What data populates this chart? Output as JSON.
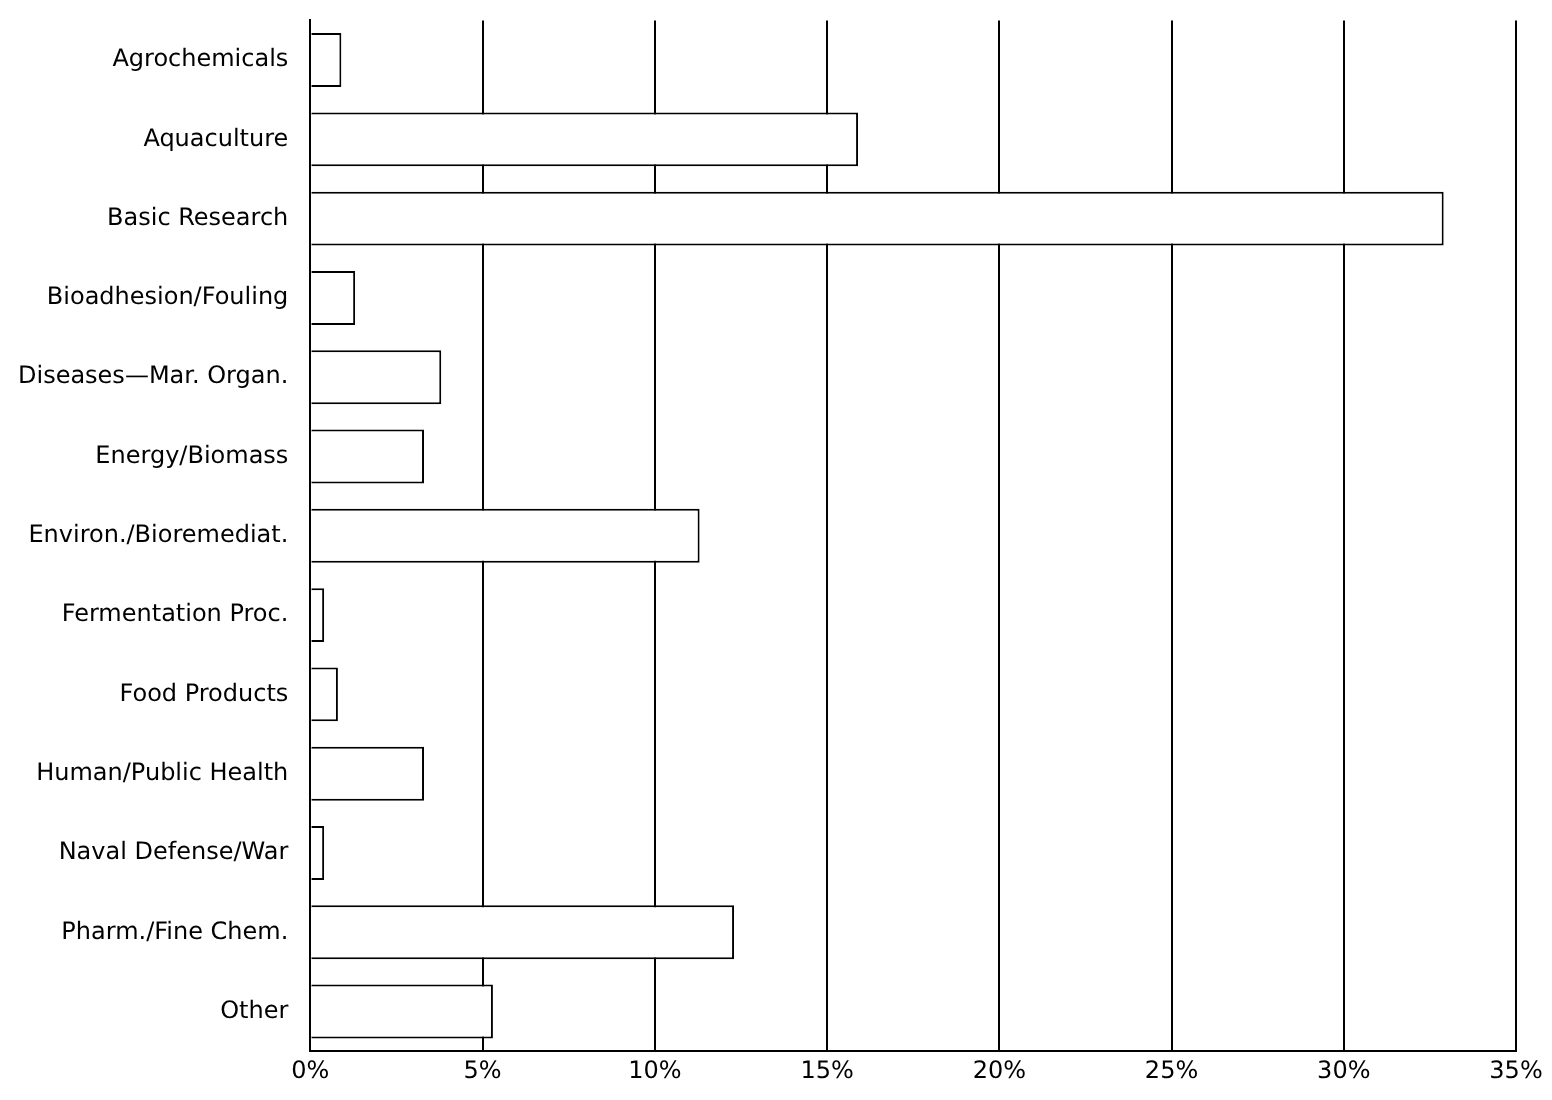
{
  "chart_data": {
    "type": "bar",
    "orientation": "horizontal",
    "categories": [
      "Agrochemicals",
      "Aquaculture",
      "Basic Research",
      "Bioadhesion/Fouling",
      "Diseases—Mar. Organ.",
      "Energy/Biomass",
      "Environ./Bioremediat.",
      "Fermentation Proc.",
      "Food Products",
      "Human/Public Health",
      "Naval Defense/War",
      "Pharm./Fine Chem.",
      "Other"
    ],
    "values": [
      0.9,
      15.9,
      32.9,
      1.3,
      3.8,
      3.3,
      11.3,
      0.4,
      0.8,
      3.3,
      0.4,
      12.3,
      5.3
    ],
    "color": "#ffffff",
    "xlim": [
      0,
      35
    ],
    "xticks": [
      {
        "value": 0,
        "label": "0%"
      },
      {
        "value": 5,
        "label": "5%"
      },
      {
        "value": 10,
        "label": "10%"
      },
      {
        "value": 15,
        "label": "15%"
      },
      {
        "value": 20,
        "label": "20%"
      },
      {
        "value": 25,
        "label": "25%"
      },
      {
        "value": 30,
        "label": "30%"
      },
      {
        "value": 35,
        "label": "35%"
      }
    ],
    "grid": "x"
  }
}
